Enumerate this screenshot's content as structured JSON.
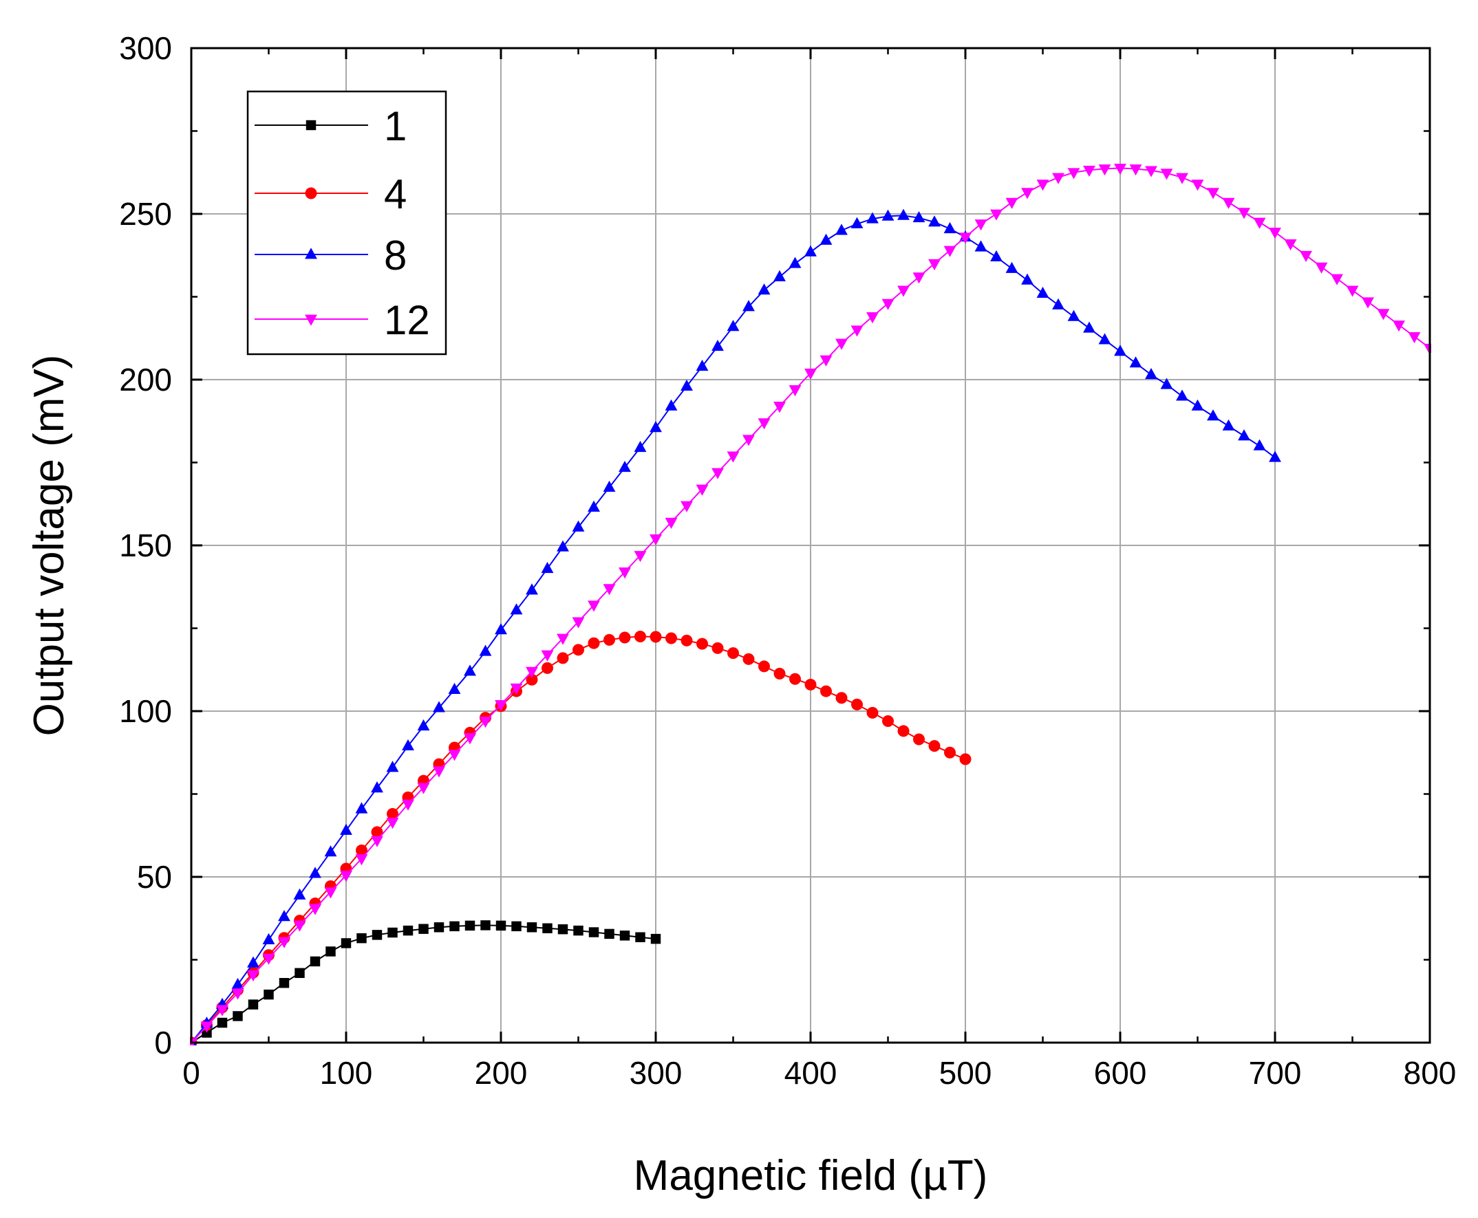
{
  "chart_data": {
    "type": "line",
    "title": "",
    "xlabel": "Magnetic field (µT)",
    "ylabel": "Output voltage (mV)",
    "xlim": [
      0,
      800
    ],
    "ylim": [
      0,
      300
    ],
    "xticks": [
      "0",
      "100",
      "200",
      "300",
      "400",
      "500",
      "600",
      "700",
      "800"
    ],
    "yticks": [
      "0",
      "50",
      "100",
      "150",
      "200",
      "250",
      "300"
    ],
    "grid": true,
    "legend_position": "top-left",
    "series": [
      {
        "name": "1",
        "color": "#000000",
        "marker": "square",
        "x": [
          0,
          10,
          20,
          30,
          40,
          50,
          60,
          70,
          80,
          90,
          100,
          110,
          120,
          130,
          140,
          150,
          160,
          170,
          180,
          190,
          200,
          210,
          220,
          230,
          240,
          250,
          260,
          270,
          280,
          290,
          300
        ],
        "y": [
          0,
          3,
          6,
          8,
          11.5,
          14.5,
          18,
          21,
          24.5,
          27.5,
          30,
          31.5,
          32.5,
          33.2,
          33.8,
          34.3,
          34.8,
          35.1,
          35.3,
          35.4,
          35.3,
          35.1,
          34.8,
          34.5,
          34.2,
          33.8,
          33.3,
          32.8,
          32.3,
          31.8,
          31.3
        ]
      },
      {
        "name": "4",
        "color": "#ff0000",
        "marker": "circle",
        "x": [
          0,
          10,
          20,
          30,
          40,
          50,
          60,
          70,
          80,
          90,
          100,
          110,
          120,
          130,
          140,
          150,
          160,
          170,
          180,
          190,
          200,
          210,
          220,
          230,
          240,
          250,
          260,
          270,
          280,
          290,
          300,
          310,
          320,
          330,
          340,
          350,
          360,
          370,
          380,
          390,
          400,
          410,
          420,
          430,
          440,
          450,
          460,
          470,
          480,
          490,
          500
        ],
        "y": [
          0,
          5.3,
          10.6,
          15.9,
          21.1,
          26.4,
          31.6,
          36.8,
          42,
          47.2,
          52.5,
          58,
          63.5,
          69,
          74,
          79,
          84,
          89,
          93.5,
          98,
          101.5,
          106,
          109.5,
          113,
          116,
          118.5,
          120.5,
          121.5,
          122.2,
          122.5,
          122.4,
          122,
          121.3,
          120.3,
          119,
          117.5,
          115.7,
          113.5,
          111.3,
          109.7,
          108,
          106,
          104,
          102,
          99.5,
          97,
          94,
          91.5,
          89.5,
          87.5,
          85.5
        ]
      },
      {
        "name": "8",
        "color": "#0000ff",
        "marker": "triangle-up",
        "x": [
          0,
          10,
          20,
          30,
          40,
          50,
          60,
          70,
          80,
          90,
          100,
          110,
          120,
          130,
          140,
          150,
          160,
          170,
          180,
          190,
          200,
          210,
          220,
          230,
          240,
          250,
          260,
          270,
          280,
          290,
          300,
          310,
          320,
          330,
          340,
          350,
          360,
          370,
          380,
          390,
          400,
          410,
          420,
          430,
          440,
          450,
          460,
          470,
          480,
          490,
          500,
          510,
          520,
          530,
          540,
          550,
          560,
          570,
          580,
          590,
          600,
          610,
          620,
          630,
          640,
          650,
          660,
          670,
          680,
          690,
          700
        ],
        "y": [
          0,
          5.8,
          11.5,
          17.5,
          24,
          31,
          38,
          44.5,
          51,
          57.5,
          64,
          70.5,
          76.8,
          83,
          89.5,
          95.5,
          101,
          106.5,
          112,
          118,
          124.5,
          130.5,
          136.5,
          143,
          149.5,
          155.5,
          161.5,
          167.5,
          173.5,
          179.5,
          185.5,
          192,
          198,
          204,
          210,
          216,
          222,
          227,
          231,
          235,
          238.5,
          242,
          245,
          247,
          248.5,
          249.3,
          249.5,
          248.8,
          247.5,
          245.5,
          243,
          240,
          237,
          233.5,
          230,
          226,
          222.5,
          219,
          215.5,
          212,
          208.5,
          205,
          201.5,
          198.5,
          195,
          192,
          189,
          186,
          183,
          180,
          176.5
        ]
      },
      {
        "name": "12",
        "color": "#ff00ff",
        "marker": "triangle-down",
        "x": [
          0,
          10,
          20,
          30,
          40,
          50,
          60,
          70,
          80,
          90,
          100,
          110,
          120,
          130,
          140,
          150,
          160,
          170,
          180,
          190,
          200,
          210,
          220,
          230,
          240,
          250,
          260,
          270,
          280,
          290,
          300,
          310,
          320,
          330,
          340,
          350,
          360,
          370,
          380,
          390,
          400,
          410,
          420,
          430,
          440,
          450,
          460,
          470,
          480,
          490,
          500,
          510,
          520,
          530,
          540,
          550,
          560,
          570,
          580,
          590,
          600,
          610,
          620,
          630,
          640,
          650,
          660,
          670,
          680,
          690,
          700,
          710,
          720,
          730,
          740,
          750,
          760,
          770,
          780,
          790,
          800
        ],
        "y": [
          0,
          5,
          10,
          15,
          20.5,
          25.5,
          30.5,
          35.5,
          40.5,
          45.5,
          50.5,
          55.5,
          61,
          66.5,
          72,
          77,
          82,
          87,
          92,
          97,
          102,
          107,
          112,
          117,
          122,
          127,
          132,
          137,
          142,
          147,
          152,
          157,
          162,
          167,
          172,
          177,
          182,
          187,
          192,
          197,
          202,
          206,
          211,
          215,
          219,
          223,
          227,
          231,
          235,
          239,
          243,
          247,
          250,
          253.5,
          256.5,
          259,
          261,
          262.5,
          263.2,
          263.6,
          263.8,
          263.6,
          263.1,
          262.3,
          261,
          259,
          256.5,
          253.5,
          250.5,
          247.5,
          244.5,
          241,
          237.5,
          234,
          230.5,
          227,
          223.5,
          220,
          216.5,
          213,
          209.5
        ]
      }
    ]
  }
}
